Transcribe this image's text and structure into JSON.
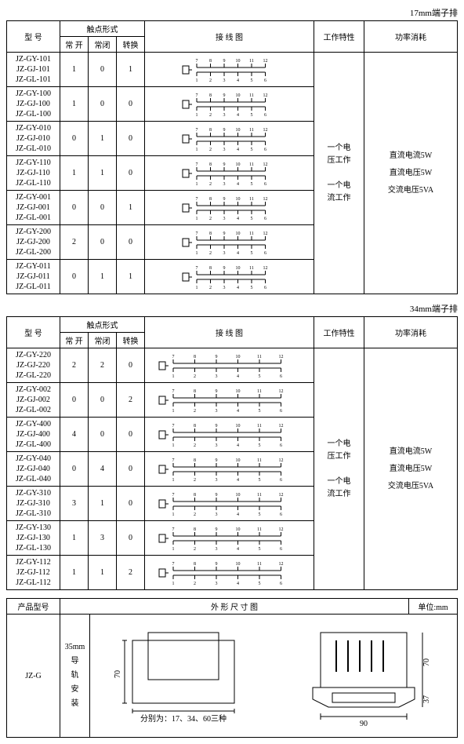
{
  "caption1": "17mm端子排",
  "caption2": "34mm端子排",
  "headers": {
    "model": "型 号",
    "contact_form": "触点形式",
    "no": "常 开",
    "nc": "常闭",
    "co": "转换",
    "wiring": "接 线 图",
    "work_char": "工作特性",
    "power": "功率消耗"
  },
  "work_char_lines": [
    "一个电",
    "压工作",
    "一个电",
    "流工作"
  ],
  "power_lines": [
    "直流电流5W",
    "直流电压5W",
    "交流电压5VA"
  ],
  "table1_rows": [
    {
      "models": [
        "JZ-GY-101",
        "JZ-GJ-101",
        "JZ-GL-101"
      ],
      "no": "1",
      "nc": "0",
      "co": "1"
    },
    {
      "models": [
        "JZ-GY-100",
        "JZ-GJ-100",
        "JZ-GL-100"
      ],
      "no": "1",
      "nc": "0",
      "co": "0"
    },
    {
      "models": [
        "JZ-GY-010",
        "JZ-GJ-010",
        "JZ-GL-010"
      ],
      "no": "0",
      "nc": "1",
      "co": "0"
    },
    {
      "models": [
        "JZ-GY-110",
        "JZ-GJ-110",
        "JZ-GL-110"
      ],
      "no": "1",
      "nc": "1",
      "co": "0"
    },
    {
      "models": [
        "JZ-GY-001",
        "JZ-GJ-001",
        "JZ-GL-001"
      ],
      "no": "0",
      "nc": "0",
      "co": "1"
    },
    {
      "models": [
        "JZ-GY-200",
        "JZ-GJ-200",
        "JZ-GL-200"
      ],
      "no": "2",
      "nc": "0",
      "co": "0"
    },
    {
      "models": [
        "JZ-GY-011",
        "JZ-GJ-011",
        "JZ-GL-011"
      ],
      "no": "0",
      "nc": "1",
      "co": "1"
    }
  ],
  "table2_rows": [
    {
      "models": [
        "JZ-GY-220",
        "JZ-GJ-220",
        "JZ-GL-220"
      ],
      "no": "2",
      "nc": "2",
      "co": "0"
    },
    {
      "models": [
        "JZ-GY-002",
        "JZ-GJ-002",
        "JZ-GL-002"
      ],
      "no": "0",
      "nc": "0",
      "co": "2"
    },
    {
      "models": [
        "JZ-GY-400",
        "JZ-GJ-400",
        "JZ-GL-400"
      ],
      "no": "4",
      "nc": "0",
      "co": "0"
    },
    {
      "models": [
        "JZ-GY-040",
        "JZ-GJ-040",
        "JZ-GL-040"
      ],
      "no": "0",
      "nc": "4",
      "co": "0"
    },
    {
      "models": [
        "JZ-GY-310",
        "JZ-GJ-310",
        "JZ-GL-310"
      ],
      "no": "3",
      "nc": "1",
      "co": "0"
    },
    {
      "models": [
        "JZ-GY-130",
        "JZ-GJ-130",
        "JZ-GL-130"
      ],
      "no": "1",
      "nc": "3",
      "co": "0"
    },
    {
      "models": [
        "JZ-GY-112",
        "JZ-GJ-112",
        "JZ-GL-112"
      ],
      "no": "1",
      "nc": "1",
      "co": "2"
    }
  ],
  "dim_table": {
    "product_model": "产品型号",
    "outline": "外 形 尺 寸 图",
    "unit": "单位:mm",
    "model_value": "JZ-G",
    "mount_label_top": "35mm",
    "mount_label_lines": [
      "导",
      "轨",
      "安",
      "装"
    ],
    "front_height": "70",
    "front_note": "分别为：17、34、60三种",
    "side_height": "70",
    "side_depth": "37",
    "side_width": "90"
  },
  "wiring_top_labels": [
    "7",
    "8",
    "9",
    "10",
    "11",
    "12"
  ],
  "wiring_bot_labels": [
    "1",
    "2",
    "3",
    "4",
    "5",
    "6"
  ]
}
